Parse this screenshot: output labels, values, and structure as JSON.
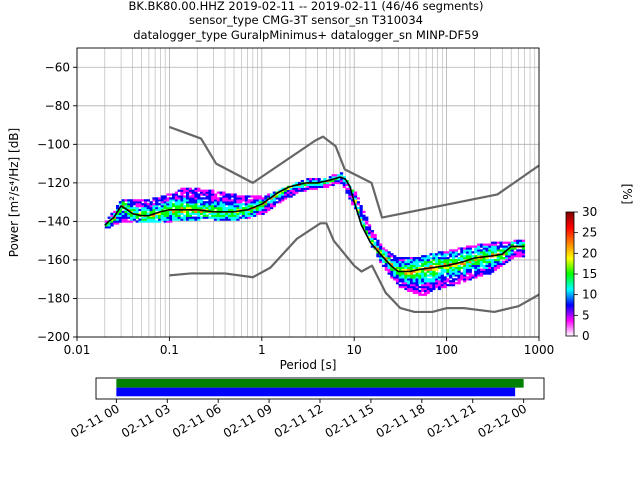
{
  "title": {
    "line1": "BK.BK80.00.HHZ   2019-02-11 -- 2019-02-11  (46/46 segments)",
    "line2": "sensor_type CMG-3T sensor_sn T310034",
    "line3": "datalogger_type GuralpMinimus+ datalogger_sn MINP-DF59"
  },
  "chart_data": [
    {
      "type": "heatmap",
      "subtype": "probabilistic power spectral density",
      "xlabel": "Period [s]",
      "ylabel": "Power [m²/s⁴/Hz] [dB]",
      "x_scale": "log",
      "xlim": [
        0.01,
        1000
      ],
      "ylim": [
        -200,
        -50
      ],
      "x_ticks": [
        0.01,
        0.1,
        1,
        10,
        100,
        1000
      ],
      "x_tick_labels": [
        "0.01",
        "0.1",
        "1",
        "10",
        "100",
        "1000"
      ],
      "y_ticks": [
        -200,
        -180,
        -160,
        -140,
        -120,
        -100,
        -80,
        -60
      ],
      "y_tick_labels": [
        "−200",
        "−180",
        "−160",
        "−140",
        "−120",
        "−100",
        "−80",
        "−60"
      ],
      "grid": true,
      "series": [
        {
          "name": "",
          "style": "mode line (black)",
          "x": [
            0.02,
            0.022,
            0.025,
            0.03,
            0.035,
            0.04,
            0.05,
            0.06,
            0.08,
            0.1,
            0.15,
            0.2,
            0.3,
            0.5,
            0.7,
            1,
            1.5,
            2,
            3,
            4,
            5,
            6,
            7,
            8,
            9,
            10,
            12,
            15,
            20,
            25,
            30,
            40,
            50,
            70,
            100,
            150,
            200,
            300,
            400,
            500,
            700
          ],
          "y": [
            -142,
            -140,
            -138,
            -132,
            -134,
            -136,
            -137,
            -137,
            -135,
            -134,
            -134,
            -134,
            -135,
            -135,
            -134,
            -131,
            -125,
            -122,
            -120,
            -120,
            -119,
            -118,
            -117,
            -118,
            -122,
            -130,
            -142,
            -151,
            -158,
            -163,
            -166,
            -166,
            -165,
            -164,
            -163,
            -161,
            -159,
            -158,
            -157,
            -153,
            -153
          ]
        },
        {
          "name": "",
          "style": "high noise model (grey)",
          "x": [
            0.1,
            0.22,
            0.32,
            0.8,
            3.8,
            4.6,
            6.3,
            7.9,
            15.4,
            20,
            354.8,
            1000
          ],
          "y": [
            -91,
            -97,
            -110,
            -120,
            -98,
            -96,
            -101,
            -113,
            -120,
            -138,
            -126,
            -111
          ]
        },
        {
          "name": "",
          "style": "low noise model (grey)",
          "x": [
            0.1,
            0.17,
            0.4,
            0.8,
            1.24,
            2.4,
            4.3,
            5,
            6,
            10,
            12,
            15.6,
            21.9,
            31.6,
            45,
            70,
            101,
            154,
            328,
            600,
            1000
          ],
          "y": [
            -168,
            -167,
            -167,
            -169,
            -164,
            -149,
            -141,
            -141,
            -150,
            -163,
            -166,
            -163,
            -177,
            -185,
            -187,
            -187,
            -185,
            -185,
            -187,
            -184,
            -178
          ]
        }
      ],
      "heat_spread": {
        "x": [
          0.02,
          0.03,
          0.05,
          0.08,
          0.1,
          0.15,
          0.2,
          0.3,
          0.5,
          1,
          2,
          3,
          5,
          7,
          10,
          15,
          20,
          30,
          50,
          100,
          200,
          300,
          500,
          700
        ],
        "upper": [
          -140,
          -129,
          -130,
          -128,
          -126,
          -123,
          -124,
          -125,
          -127,
          -128,
          -122,
          -119,
          -118,
          -115,
          -126,
          -145,
          -155,
          -160,
          -159,
          -156,
          -153,
          -152,
          -151,
          -150
        ],
        "lower": [
          -143,
          -139,
          -140,
          -140,
          -139,
          -139,
          -138,
          -138,
          -139,
          -135,
          -126,
          -123,
          -121,
          -119,
          -133,
          -152,
          -163,
          -173,
          -178,
          -173,
          -168,
          -166,
          -158,
          -157
        ]
      },
      "colorbar": {
        "label": "[%]",
        "min": 0,
        "max": 30,
        "ticks": [
          0,
          5,
          10,
          15,
          20,
          25,
          30
        ],
        "colors": [
          "#ffffff",
          "#ff00ff",
          "#0000ff",
          "#00ffff",
          "#00ff00",
          "#ffff00",
          "#ff8000",
          "#ff0000",
          "#800000"
        ]
      }
    },
    {
      "type": "timeline",
      "description_free": true,
      "tick_labels": [
        "02-11 00",
        "02-11 03",
        "02-11 06",
        "02-11 09",
        "02-11 12",
        "02-11 15",
        "02-11 18",
        "02-11 21",
        "02-12 00"
      ],
      "tick_hours": [
        0,
        3,
        6,
        9,
        12,
        15,
        18,
        21,
        24
      ],
      "xlim_hours": [
        -1.2,
        25.2
      ],
      "bars": [
        {
          "color": "#008000",
          "start_hour": 0.0,
          "end_hour": 24.0
        },
        {
          "color": "#0000ff",
          "start_hour": 0.0,
          "end_hour": 23.5
        }
      ]
    }
  ]
}
